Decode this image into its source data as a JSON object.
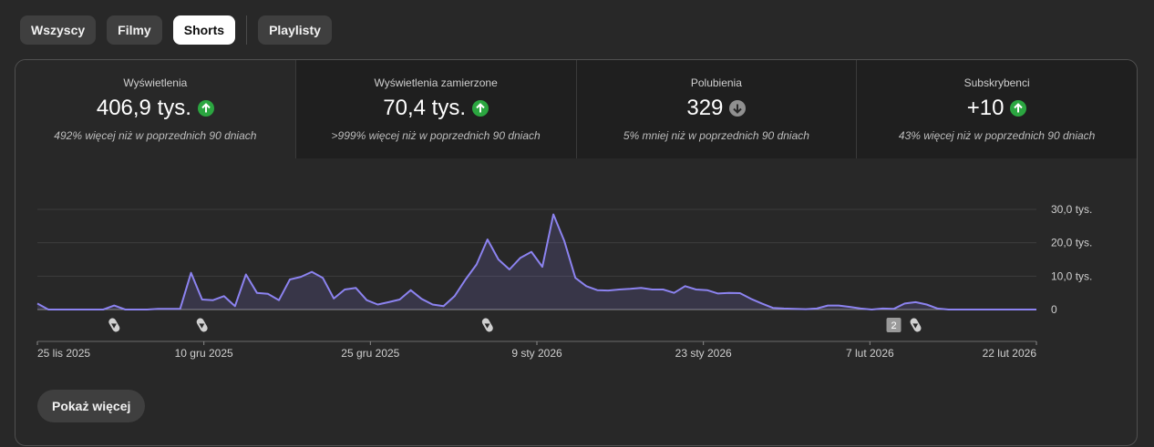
{
  "filters": [
    {
      "label": "Wszyscy",
      "active": false
    },
    {
      "label": "Filmy",
      "active": false
    },
    {
      "label": "Shorts",
      "active": true
    },
    {
      "label": "Playlisty",
      "active": false
    }
  ],
  "metrics": [
    {
      "label": "Wyświetlenia",
      "value": "406,9 tys.",
      "trend": "up",
      "note": "492% więcej niż w poprzednich 90 dniach"
    },
    {
      "label": "Wyświetlenia zamierzone",
      "value": "70,4 tys.",
      "trend": "up",
      "note": ">999% więcej niż w poprzednich 90 dniach"
    },
    {
      "label": "Polubienia",
      "value": "329",
      "trend": "down",
      "note": "5% mniej niż w poprzednich 90 dniach"
    },
    {
      "label": "Subskrybenci",
      "value": "+10",
      "trend": "up",
      "note": "43% więcej niż w poprzednich 90 dniach"
    }
  ],
  "colors": {
    "line": "#8c83f0",
    "trend_up": "#2ba640",
    "trend_down": "#909090"
  },
  "chart_data": {
    "type": "line",
    "series": [
      {
        "values": [
          1800,
          0,
          0,
          0,
          0,
          0,
          0,
          1200,
          0,
          0,
          0,
          200,
          200,
          200,
          11000,
          3000,
          2800,
          4000,
          1000,
          10500,
          5000,
          4700,
          2800,
          9000,
          9800,
          11300,
          9500,
          3300,
          6000,
          6500,
          2800,
          1500,
          2200,
          3000,
          5800,
          3200,
          1500,
          1000,
          4000,
          9000,
          13500,
          21000,
          15000,
          12000,
          15500,
          17300,
          12800,
          28500,
          20500,
          9500,
          7000,
          5800,
          5700,
          6000,
          6200,
          6500,
          6000,
          6000,
          5000,
          7000,
          6000,
          5800,
          4800,
          5000,
          4900,
          3200,
          1800,
          500,
          300,
          200,
          100,
          300,
          1200,
          1200,
          800,
          300,
          0,
          300,
          200,
          1800,
          2200,
          1500,
          300,
          0,
          0,
          0,
          0,
          0,
          0,
          0,
          0,
          0
        ]
      }
    ],
    "x_ticks": [
      "25 lis 2025",
      "10 gru 2025",
      "25 gru 2025",
      "9 sty 2026",
      "23 sty 2026",
      "7 lut 2026",
      "22 lut 2026"
    ],
    "y_ticks": [
      "30,0 tys.",
      "20,0 tys.",
      "10,0 tys.",
      "0"
    ],
    "ylim": [
      0,
      30000
    ],
    "grid": true,
    "markers": [
      {
        "icon": "shorts-icon",
        "index": 7
      },
      {
        "icon": "shorts-icon",
        "index": 15
      },
      {
        "icon": "shorts-icon",
        "index": 41
      },
      {
        "icon": "shorts-icon",
        "index": 80,
        "badge": "2"
      }
    ]
  },
  "show_more": "Pokaż więcej"
}
